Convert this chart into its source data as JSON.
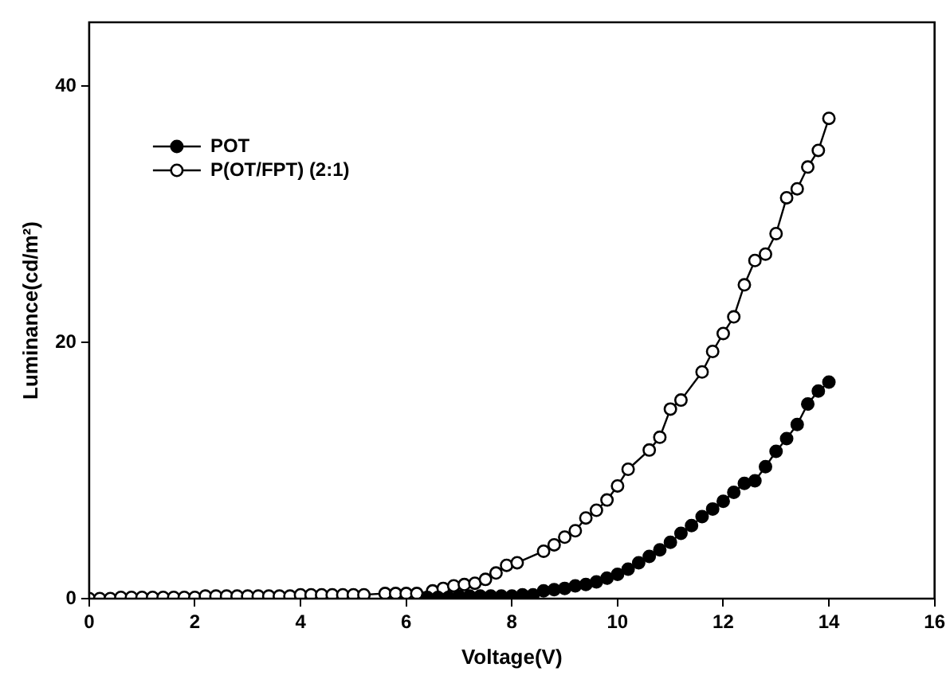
{
  "chart_data": {
    "type": "line",
    "xlabel": "Voltage(V)",
    "ylabel": "Luminance(cd/m²)",
    "xlim": [
      0,
      16
    ],
    "xticks": [
      0,
      2,
      4,
      6,
      8,
      10,
      12,
      14,
      16
    ],
    "ylim": [
      0,
      45
    ],
    "yticks": [
      0,
      20,
      40
    ],
    "grid": false,
    "legend": "top left",
    "marker": "circle",
    "line_style": "solid",
    "series": [
      {
        "name": "POT",
        "color": "#000000",
        "x": [
          6.4,
          6.6,
          6.8,
          7.0,
          7.2,
          7.4,
          7.6,
          7.8,
          8.0,
          8.2,
          8.4,
          8.6,
          8.8,
          9.0,
          9.2,
          9.4,
          9.6,
          9.8,
          10.0,
          10.2,
          10.4,
          10.6,
          10.8,
          11.0,
          11.2,
          11.4,
          11.6,
          11.8,
          12.0,
          12.2,
          12.4,
          12.6,
          12.8,
          13.0,
          13.2,
          13.4,
          13.6,
          13.8,
          14.0
        ],
        "values": [
          0.1,
          0.1,
          0.1,
          0.2,
          0.2,
          0.2,
          0.2,
          0.2,
          0.2,
          0.3,
          0.3,
          0.6,
          0.7,
          0.8,
          1.0,
          1.1,
          1.3,
          1.6,
          1.9,
          2.3,
          2.8,
          3.3,
          3.8,
          4.4,
          5.1,
          5.7,
          6.4,
          7.0,
          7.6,
          8.3,
          9.0,
          9.2,
          10.3,
          11.5,
          12.5,
          13.6,
          15.2,
          16.2,
          16.9
        ]
      },
      {
        "name": "P(OT/FPT) (2:1)",
        "color": "#000000",
        "x": [
          0,
          0.2,
          0.4,
          0.6,
          0.8,
          1.0,
          1.2,
          1.4,
          1.6,
          1.8,
          2.0,
          2.2,
          2.4,
          2.6,
          2.8,
          3.0,
          3.2,
          3.4,
          3.6,
          3.8,
          4.0,
          4.2,
          4.4,
          4.6,
          4.8,
          5.0,
          5.2,
          5.6,
          5.8,
          6.0,
          6.2,
          6.5,
          6.7,
          6.9,
          7.1,
          7.3,
          7.5,
          7.7,
          7.9,
          8.1,
          8.6,
          8.8,
          9.0,
          9.2,
          9.4,
          9.6,
          9.8,
          10.0,
          10.2,
          10.6,
          10.8,
          11.0,
          11.2,
          11.6,
          11.8,
          12.0,
          12.2,
          12.4,
          12.6,
          12.8,
          13.0,
          13.2,
          13.4,
          13.6,
          13.8,
          14.0
        ],
        "values": [
          0.0,
          0.0,
          0.0,
          0.1,
          0.1,
          0.1,
          0.1,
          0.1,
          0.1,
          0.1,
          0.1,
          0.2,
          0.2,
          0.2,
          0.2,
          0.2,
          0.2,
          0.2,
          0.2,
          0.2,
          0.3,
          0.3,
          0.3,
          0.3,
          0.3,
          0.3,
          0.3,
          0.4,
          0.4,
          0.4,
          0.4,
          0.6,
          0.8,
          1.0,
          1.1,
          1.2,
          1.5,
          2.0,
          2.6,
          2.8,
          3.7,
          4.2,
          4.8,
          5.3,
          6.3,
          6.9,
          7.7,
          8.8,
          10.1,
          11.6,
          12.6,
          14.8,
          15.5,
          17.7,
          19.3,
          20.7,
          22.0,
          24.5,
          26.4,
          26.9,
          28.5,
          31.3,
          32.0,
          33.7,
          35.0,
          37.5
        ]
      }
    ]
  }
}
